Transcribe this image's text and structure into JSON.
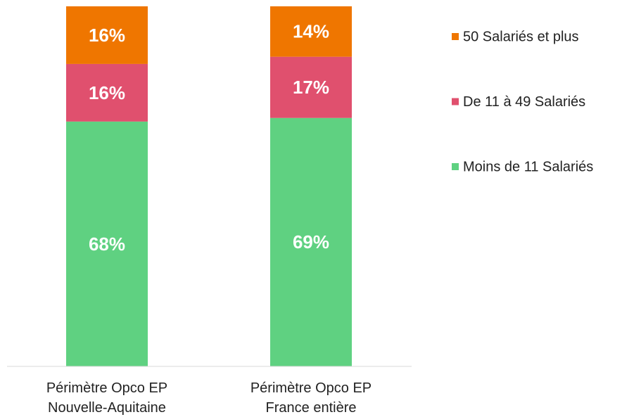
{
  "chart_data": {
    "type": "stacked_bar",
    "categories": [
      "Périmètre Opco EP Nouvelle-Aquitaine",
      "Périmètre Opco EP France entière"
    ],
    "series": [
      {
        "name": "Moins de 11 Salariés",
        "color": "#5fd181",
        "values": [
          68,
          69
        ],
        "value_labels": [
          "68%",
          "69%"
        ]
      },
      {
        "name": "De 11 à 49 Salariés",
        "color": "#e0506e",
        "values": [
          16,
          17
        ],
        "value_labels": [
          "16%",
          "17%"
        ]
      },
      {
        "name": "50 Salariés et plus",
        "color": "#ef7600",
        "values": [
          16,
          14
        ],
        "value_labels": [
          "16%",
          "14%"
        ]
      }
    ],
    "ylim": [
      0,
      100
    ],
    "legend": "right"
  }
}
